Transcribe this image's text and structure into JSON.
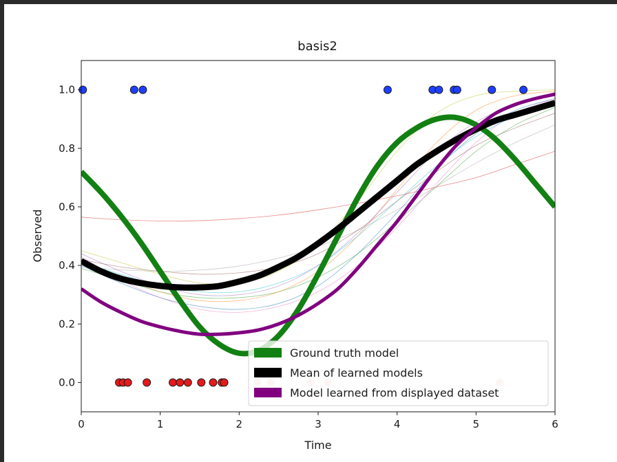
{
  "chart_data": {
    "type": "line",
    "title": "basis2",
    "xlabel": "Time",
    "ylabel": "Observed",
    "xlim": [
      0,
      6
    ],
    "ylim": [
      -0.1,
      1.1
    ],
    "xticks": [
      "0",
      "1",
      "2",
      "3",
      "4",
      "5",
      "6"
    ],
    "yticks": [
      "0.0",
      "0.2",
      "0.4",
      "0.6",
      "0.8",
      "1.0"
    ],
    "grid": false,
    "legend_position": "lower-right",
    "series": [
      {
        "name": "Ground truth model",
        "color": "#138013",
        "x": [
          0,
          0.25,
          0.5,
          0.75,
          1.0,
          1.25,
          1.5,
          1.75,
          2.0,
          2.25,
          2.5,
          2.75,
          3.0,
          3.25,
          3.5,
          3.75,
          4.0,
          4.25,
          4.5,
          4.75,
          5.0,
          5.25,
          5.5,
          5.75,
          6.0
        ],
        "y": [
          0.72,
          0.65,
          0.57,
          0.48,
          0.38,
          0.28,
          0.19,
          0.13,
          0.1,
          0.11,
          0.16,
          0.25,
          0.37,
          0.5,
          0.63,
          0.74,
          0.82,
          0.87,
          0.9,
          0.905,
          0.88,
          0.83,
          0.76,
          0.68,
          0.6
        ]
      },
      {
        "name": "Mean of learned models",
        "color": "#000000",
        "x": [
          0,
          0.25,
          0.5,
          0.75,
          1.0,
          1.25,
          1.5,
          1.75,
          2.0,
          2.25,
          2.5,
          2.75,
          3.0,
          3.25,
          3.5,
          3.75,
          4.0,
          4.25,
          4.5,
          4.75,
          5.0,
          5.25,
          5.5,
          5.75,
          6.0
        ],
        "y": [
          0.415,
          0.38,
          0.355,
          0.34,
          0.33,
          0.325,
          0.325,
          0.33,
          0.345,
          0.365,
          0.395,
          0.43,
          0.475,
          0.525,
          0.58,
          0.635,
          0.69,
          0.745,
          0.79,
          0.83,
          0.865,
          0.895,
          0.915,
          0.935,
          0.955
        ]
      },
      {
        "name": "Model learned from displayed dataset",
        "color": "#800080",
        "x": [
          0,
          0.25,
          0.5,
          0.75,
          1.0,
          1.25,
          1.5,
          1.75,
          2.0,
          2.25,
          2.5,
          2.75,
          3.0,
          3.25,
          3.5,
          3.75,
          4.0,
          4.25,
          4.5,
          4.75,
          5.0,
          5.25,
          5.5,
          5.75,
          6.0
        ],
        "y": [
          0.32,
          0.275,
          0.24,
          0.21,
          0.19,
          0.175,
          0.165,
          0.165,
          0.17,
          0.18,
          0.2,
          0.23,
          0.27,
          0.32,
          0.39,
          0.47,
          0.55,
          0.64,
          0.73,
          0.81,
          0.87,
          0.92,
          0.95,
          0.97,
          0.985
        ]
      }
    ],
    "background_models": {
      "x": [
        0,
        0.5,
        1.0,
        1.5,
        2.0,
        2.5,
        3.0,
        3.5,
        4.0,
        4.5,
        5.0,
        5.5,
        6.0
      ],
      "lines": [
        {
          "color": "#d62728",
          "y": [
            0.565,
            0.556,
            0.552,
            0.553,
            0.56,
            0.572,
            0.59,
            0.612,
            0.638,
            0.668,
            0.7,
            0.745,
            0.79
          ]
        },
        {
          "color": "#9e9e9e",
          "y": [
            0.395,
            0.385,
            0.38,
            0.384,
            0.398,
            0.425,
            0.465,
            0.52,
            0.59,
            0.67,
            0.75,
            0.82,
            0.88
          ]
        },
        {
          "color": "#8c564b",
          "y": [
            0.42,
            0.395,
            0.38,
            0.37,
            0.375,
            0.395,
            0.44,
            0.52,
            0.62,
            0.72,
            0.81,
            0.87,
            0.92
          ]
        },
        {
          "color": "#2ca02c",
          "y": [
            0.39,
            0.35,
            0.31,
            0.29,
            0.29,
            0.31,
            0.36,
            0.44,
            0.55,
            0.67,
            0.79,
            0.88,
            0.94
          ]
        },
        {
          "color": "#1f77b4",
          "y": [
            0.4,
            0.34,
            0.29,
            0.26,
            0.25,
            0.27,
            0.33,
            0.44,
            0.58,
            0.73,
            0.85,
            0.93,
            0.97
          ]
        },
        {
          "color": "#ff7f0e",
          "y": [
            0.42,
            0.36,
            0.31,
            0.28,
            0.28,
            0.31,
            0.38,
            0.5,
            0.66,
            0.82,
            0.93,
            0.98,
            0.995
          ]
        },
        {
          "color": "#e377c2",
          "y": [
            0.43,
            0.35,
            0.29,
            0.25,
            0.24,
            0.26,
            0.31,
            0.4,
            0.53,
            0.68,
            0.82,
            0.92,
            0.97
          ]
        },
        {
          "color": "#bcbd22",
          "y": [
            0.45,
            0.41,
            0.37,
            0.34,
            0.34,
            0.38,
            0.47,
            0.62,
            0.79,
            0.92,
            0.98,
            0.995,
            1.0
          ]
        },
        {
          "color": "#17becf",
          "y": [
            0.41,
            0.37,
            0.33,
            0.31,
            0.31,
            0.34,
            0.4,
            0.5,
            0.62,
            0.74,
            0.84,
            0.91,
            0.95
          ]
        },
        {
          "color": "#9467bd",
          "y": [
            0.44,
            0.38,
            0.33,
            0.3,
            0.3,
            0.33,
            0.4,
            0.51,
            0.65,
            0.79,
            0.89,
            0.95,
            0.98
          ]
        }
      ]
    },
    "observations": {
      "positive": {
        "color": "#1f3fff",
        "y": 1.0,
        "x": [
          0.02,
          0.67,
          0.78,
          3.88,
          4.45,
          4.53,
          4.72,
          4.76,
          5.2,
          5.6
        ]
      },
      "negative": {
        "color": "#e41a1c",
        "y": 0.0,
        "x": [
          0.48,
          0.53,
          0.59,
          0.83,
          1.16,
          1.25,
          1.35,
          1.52,
          1.67,
          1.78,
          1.81
        ]
      },
      "negative_faded": {
        "color": "#f4c6c6",
        "y": 0.0,
        "x": [
          2.23,
          2.4,
          2.9,
          3.12,
          5.3
        ]
      }
    }
  }
}
